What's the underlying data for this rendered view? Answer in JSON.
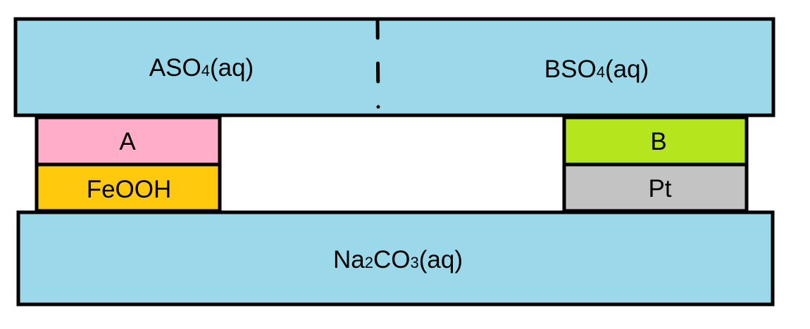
{
  "colors": {
    "solution": "#9BD9EA",
    "metal_a": "#FFADC9",
    "feooh": "#FFC90E",
    "metal_b": "#B5E61D",
    "pt": "#C3C3C3",
    "outline": "#000000"
  },
  "top_left": {
    "main": "ASO",
    "sub": "4",
    "tail": "(aq)"
  },
  "top_right": {
    "main": "BSO",
    "sub": "4",
    "tail": "(aq)"
  },
  "left_stack": {
    "upper": "A",
    "lower": "FeOOH"
  },
  "right_stack": {
    "upper": "B",
    "lower": "Pt"
  },
  "bottom": {
    "p1": "Na",
    "s1": "2",
    "p2": "CO",
    "s2": "3",
    "tail": "(aq)"
  }
}
